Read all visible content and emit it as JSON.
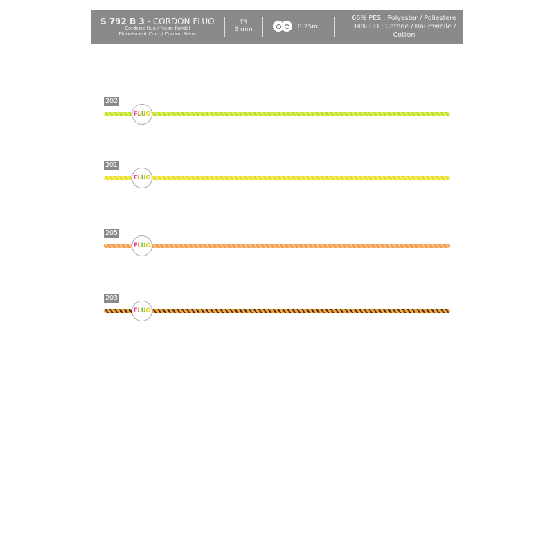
{
  "header": {
    "code": "S 792 B 3",
    "title": "- CORDON FLUO",
    "sub1": "Cordone fluo / Neon-Kordel",
    "sub2": "Fluorescent Cord / Cordon Neon",
    "size1": "T3",
    "size2": "3 mm",
    "reel_icon": "reel-icon",
    "reel": "B 25m",
    "mat1": "66% PES : Polyester / Poliestere",
    "mat2": "34% CO : Cotone / Baumwolle / Cotton"
  },
  "badge": {
    "letters": [
      "F",
      "L",
      "U",
      "O"
    ],
    "colors": [
      "#e8399a",
      "#f08a2a",
      "#7cc242",
      "#f2d21a"
    ]
  },
  "cords": [
    {
      "code": "202",
      "color": "#d6f04c",
      "stripe": "#b8d83a"
    },
    {
      "code": "201",
      "color": "#f4ee52",
      "stripe": "#e0d43a"
    },
    {
      "code": "205",
      "color": "#f7a050",
      "stripe": "#f2c79a"
    },
    {
      "code": "203",
      "color": "#f3a23a",
      "stripe": "#3a2a1a"
    }
  ]
}
